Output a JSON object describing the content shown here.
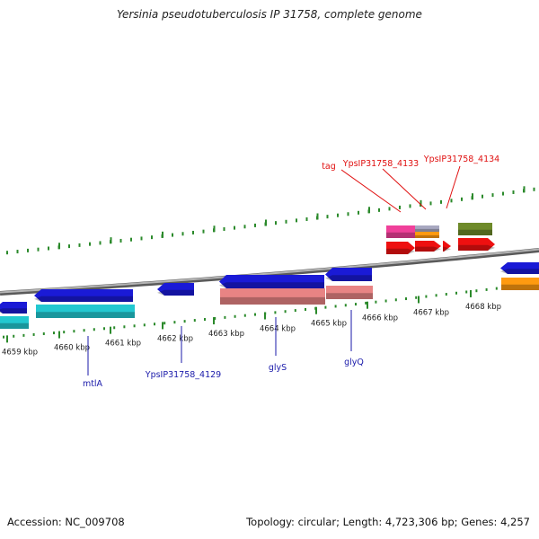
{
  "title": "Yersinia pseudotuberculosis IP 31758, complete genome",
  "footer": {
    "accession": "Accession: NC_009708",
    "summary": "Topology: circular; Length: 4,723,306 bp; Genes: 4,257"
  },
  "colors": {
    "backbone": "#888888",
    "tick": "#2b8a2b",
    "blue_gene": "#1a1ad6",
    "cyan_gene": "#22c8d0",
    "salmon_gene": "#e88484",
    "red_gene": "#ee1010",
    "pink_gene": "#f0409a",
    "olive_gene": "#6e8a2a",
    "orange_gene": "#ff9a10",
    "gray_gene": "#a8a8c0",
    "label_blue": "#1a1aaa",
    "label_red": "#e01010"
  },
  "ruler": {
    "ticks": [
      {
        "label": "4659 kbp"
      },
      {
        "label": "4660 kbp"
      },
      {
        "label": "4661 kbp"
      },
      {
        "label": "4662 kbp"
      },
      {
        "label": "4663 kbp"
      },
      {
        "label": "4664 kbp"
      },
      {
        "label": "4665 kbp"
      },
      {
        "label": "4666 kbp"
      },
      {
        "label": "4667 kbp"
      },
      {
        "label": "4668 kbp"
      }
    ]
  },
  "gene_labels_bottom": [
    {
      "text": "mtlA"
    },
    {
      "text": "YpsIP31758_4129"
    },
    {
      "text": "glyS"
    },
    {
      "text": "glyQ"
    }
  ],
  "gene_labels_top": [
    {
      "text": "tag"
    },
    {
      "text": "YpsIP31758_4133"
    },
    {
      "text": "YpsIP31758_4134"
    }
  ]
}
